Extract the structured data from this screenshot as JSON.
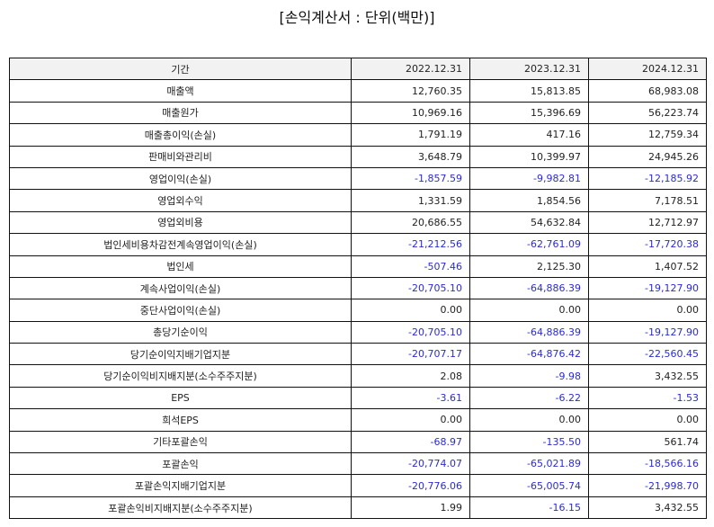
{
  "title": "[손익계산서 : 단위(백만)]",
  "colors": {
    "negative": "#2b2bd6",
    "header_bg": "#f2f2f2",
    "border": "#111111"
  },
  "table": {
    "headers": [
      "기간",
      "2022.12.31",
      "2023.12.31",
      "2024.12.31"
    ],
    "rows": [
      {
        "label": "매출액",
        "values": [
          "12,760.35",
          "15,813.85",
          "68,983.08"
        ]
      },
      {
        "label": "매출원가",
        "values": [
          "10,969.16",
          "15,396.69",
          "56,223.74"
        ]
      },
      {
        "label": "매출총이익(손실)",
        "values": [
          "1,791.19",
          "417.16",
          "12,759.34"
        ]
      },
      {
        "label": "판매비와관리비",
        "values": [
          "3,648.79",
          "10,399.97",
          "24,945.26"
        ]
      },
      {
        "label": "영업이익(손실)",
        "values": [
          "-1,857.59",
          "-9,982.81",
          "-12,185.92"
        ]
      },
      {
        "label": "영업외수익",
        "values": [
          "1,331.59",
          "1,854.56",
          "7,178.51"
        ]
      },
      {
        "label": "영업외비용",
        "values": [
          "20,686.55",
          "54,632.84",
          "12,712.97"
        ]
      },
      {
        "label": "법인세비용차감전계속영업이익(손실)",
        "values": [
          "-21,212.56",
          "-62,761.09",
          "-17,720.38"
        ]
      },
      {
        "label": "법인세",
        "values": [
          "-507.46",
          "2,125.30",
          "1,407.52"
        ]
      },
      {
        "label": "계속사업이익(손실)",
        "values": [
          "-20,705.10",
          "-64,886.39",
          "-19,127.90"
        ]
      },
      {
        "label": "중단사업이익(손실)",
        "values": [
          "0.00",
          "0.00",
          "0.00"
        ]
      },
      {
        "label": "총당기순이익",
        "values": [
          "-20,705.10",
          "-64,886.39",
          "-19,127.90"
        ]
      },
      {
        "label": "당기순이익지배기업지분",
        "values": [
          "-20,707.17",
          "-64,876.42",
          "-22,560.45"
        ]
      },
      {
        "label": "당기순이익비지배지분(소수주주지분)",
        "values": [
          "2.08",
          "-9.98",
          "3,432.55"
        ]
      },
      {
        "label": "EPS",
        "values": [
          "-3.61",
          "-6.22",
          "-1.53"
        ]
      },
      {
        "label": "희석EPS",
        "values": [
          "0.00",
          "0.00",
          "0.00"
        ]
      },
      {
        "label": "기타포괄손익",
        "values": [
          "-68.97",
          "-135.50",
          "561.74"
        ]
      },
      {
        "label": "포괄손익",
        "values": [
          "-20,774.07",
          "-65,021.89",
          "-18,566.16"
        ]
      },
      {
        "label": "포괄손익지배기업지분",
        "values": [
          "-20,776.06",
          "-65,005.74",
          "-21,998.70"
        ]
      },
      {
        "label": "포괄손익비지배지분(소수주주지분)",
        "values": [
          "1.99",
          "-16.15",
          "3,432.55"
        ]
      }
    ]
  }
}
